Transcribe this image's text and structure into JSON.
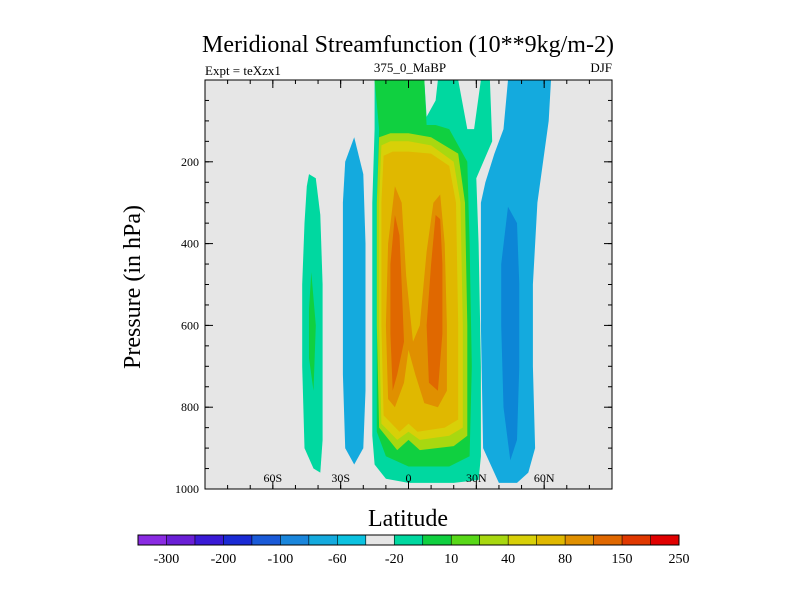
{
  "chart_data": {
    "type": "heatmap",
    "title": "Meridional Streamfunction (10**9kg/m-2)",
    "left_label": "Expt = teXzx1",
    "center_label": "375_0_MaBP",
    "right_label": "DJF",
    "xlabel": "Latitude",
    "ylabel": "Pressure (in hPa)",
    "xlim": [
      -90,
      90
    ],
    "ylim": [
      1000,
      0
    ],
    "x_ticks": [
      {
        "value": -60,
        "label": "60S"
      },
      {
        "value": -30,
        "label": "30S"
      },
      {
        "value": 0,
        "label": "0"
      },
      {
        "value": 30,
        "label": "30N"
      },
      {
        "value": 60,
        "label": "60N"
      }
    ],
    "y_ticks": [
      {
        "value": 200,
        "label": "200"
      },
      {
        "value": 400,
        "label": "400"
      },
      {
        "value": 600,
        "label": "600"
      },
      {
        "value": 800,
        "label": "800"
      },
      {
        "value": 1000,
        "label": "1000"
      }
    ],
    "background_color": "#e6e6e6",
    "colorbar": {
      "colors": [
        "#8a2be2",
        "#6a1fd6",
        "#3a1ad6",
        "#1a2ad4",
        "#1a5ad8",
        "#1a86dc",
        "#14aade",
        "#0cc2e0",
        "#e6e6e6",
        "#00d8a0",
        "#10d040",
        "#58d818",
        "#a8d810",
        "#d8d008",
        "#e0b800",
        "#e09000",
        "#e06800",
        "#e03800",
        "#e00000"
      ],
      "labels": [
        "-300",
        "-200",
        "-100",
        "-60",
        "-20",
        "10",
        "40",
        "80",
        "150",
        "250"
      ]
    },
    "cells": [
      {
        "name": "cell-60s-positive",
        "level": 10,
        "color": "#00d8a0",
        "points": [
          [
            -44,
            230
          ],
          [
            -41,
            240
          ],
          [
            -39,
            330
          ],
          [
            -38,
            500
          ],
          [
            -38,
            700
          ],
          [
            -38,
            880
          ],
          [
            -39,
            960
          ],
          [
            -42,
            950
          ],
          [
            -46,
            900
          ],
          [
            -47,
            700
          ],
          [
            -47,
            500
          ],
          [
            -46,
            350
          ],
          [
            -45,
            260
          ]
        ]
      },
      {
        "name": "cell-60s-positive-core",
        "level": 40,
        "color": "#10d040",
        "points": [
          [
            -43,
            470
          ],
          [
            -41,
            600
          ],
          [
            -42,
            760
          ],
          [
            -44,
            680
          ],
          [
            -44,
            560
          ]
        ]
      },
      {
        "name": "cell-30s-negative",
        "level": -20,
        "color": "#14aade",
        "points": [
          [
            -24,
            140
          ],
          [
            -20,
            230
          ],
          [
            -19,
            400
          ],
          [
            -19,
            600
          ],
          [
            -19,
            760
          ],
          [
            -20,
            900
          ],
          [
            -24,
            940
          ],
          [
            -28,
            900
          ],
          [
            -29,
            720
          ],
          [
            -29,
            500
          ],
          [
            -29,
            300
          ],
          [
            -28,
            200
          ]
        ]
      },
      {
        "name": "cell-hadley-10",
        "level": 10,
        "color": "#00d8a0",
        "points": [
          [
            -15,
            0
          ],
          [
            -15,
            120
          ],
          [
            -16,
            300
          ],
          [
            -16,
            600
          ],
          [
            -16,
            870
          ],
          [
            -15,
            940
          ],
          [
            -10,
            975
          ],
          [
            0,
            985
          ],
          [
            20,
            985
          ],
          [
            31,
            978
          ],
          [
            32,
            920
          ],
          [
            32,
            700
          ],
          [
            31,
            400
          ],
          [
            30,
            240
          ],
          [
            37,
            150
          ],
          [
            36,
            0
          ],
          [
            32,
            0
          ],
          [
            29,
            120
          ],
          [
            26,
            120
          ],
          [
            22,
            0
          ],
          [
            13,
            0
          ],
          [
            12,
            50
          ],
          [
            8,
            90
          ],
          [
            7,
            0
          ]
        ]
      },
      {
        "name": "cell-hadley-40",
        "level": 40,
        "color": "#10d040",
        "points": [
          [
            -15,
            0
          ],
          [
            -13,
            120
          ],
          [
            -14,
            300
          ],
          [
            -14,
            600
          ],
          [
            -14,
            860
          ],
          [
            -10,
            920
          ],
          [
            0,
            945
          ],
          [
            18,
            945
          ],
          [
            27,
            920
          ],
          [
            28,
            700
          ],
          [
            27,
            400
          ],
          [
            26,
            200
          ],
          [
            18,
            120
          ],
          [
            12,
            110
          ],
          [
            8,
            110
          ],
          [
            7,
            0
          ]
        ]
      },
      {
        "name": "cell-hadley-80",
        "level": 80,
        "color": "#a8d810",
        "points": [
          [
            -13,
            140
          ],
          [
            -14,
            300
          ],
          [
            -14,
            600
          ],
          [
            -13,
            850
          ],
          [
            -5,
            905
          ],
          [
            0,
            880
          ],
          [
            5,
            905
          ],
          [
            20,
            895
          ],
          [
            26,
            870
          ],
          [
            26,
            600
          ],
          [
            25,
            300
          ],
          [
            22,
            180
          ],
          [
            10,
            140
          ],
          [
            0,
            130
          ],
          [
            -8,
            130
          ]
        ]
      },
      {
        "name": "cell-hadley-100",
        "level": 100,
        "color": "#d8d008",
        "points": [
          [
            -12,
            160
          ],
          [
            -13,
            300
          ],
          [
            -13,
            600
          ],
          [
            -12,
            840
          ],
          [
            -5,
            880
          ],
          [
            0,
            860
          ],
          [
            5,
            880
          ],
          [
            18,
            870
          ],
          [
            24,
            850
          ],
          [
            24,
            600
          ],
          [
            23,
            300
          ],
          [
            20,
            200
          ],
          [
            10,
            160
          ],
          [
            0,
            150
          ],
          [
            -8,
            150
          ]
        ]
      },
      {
        "name": "cell-hadley-150",
        "level": 150,
        "color": "#e0b800",
        "points": [
          [
            -11,
            185
          ],
          [
            -12,
            300
          ],
          [
            -12,
            600
          ],
          [
            -11,
            820
          ],
          [
            -4,
            860
          ],
          [
            0,
            840
          ],
          [
            4,
            860
          ],
          [
            16,
            850
          ],
          [
            22,
            830
          ],
          [
            22,
            600
          ],
          [
            21,
            300
          ],
          [
            18,
            210
          ],
          [
            10,
            180
          ],
          [
            0,
            175
          ],
          [
            -7,
            175
          ]
        ]
      },
      {
        "name": "cell-hadley-200",
        "level": 200,
        "color": "#e09000",
        "points": [
          [
            -6,
            260
          ],
          [
            -9,
            400
          ],
          [
            -10,
            600
          ],
          [
            -9,
            780
          ],
          [
            -6,
            800
          ],
          [
            -2,
            740
          ],
          [
            0,
            660
          ],
          [
            3,
            720
          ],
          [
            7,
            790
          ],
          [
            13,
            800
          ],
          [
            17,
            760
          ],
          [
            17,
            600
          ],
          [
            16,
            400
          ],
          [
            14,
            280
          ],
          [
            11,
            300
          ],
          [
            8,
            420
          ],
          [
            5,
            600
          ],
          [
            2,
            640
          ],
          [
            -1,
            480
          ],
          [
            -3,
            300
          ]
        ]
      },
      {
        "name": "cell-hadley-250",
        "level": 250,
        "color": "#e06800",
        "points": [
          [
            -6,
            330
          ],
          [
            -8,
            450
          ],
          [
            -8,
            620
          ],
          [
            -7,
            760
          ],
          [
            -5,
            720
          ],
          [
            -2,
            640
          ],
          [
            -3,
            500
          ],
          [
            -4,
            380
          ]
        ]
      },
      {
        "name": "cell-hadley-250-nh",
        "level": 250,
        "color": "#e06800",
        "points": [
          [
            12,
            330
          ],
          [
            10,
            450
          ],
          [
            8,
            600
          ],
          [
            9,
            740
          ],
          [
            13,
            760
          ],
          [
            15,
            620
          ],
          [
            15,
            450
          ],
          [
            14,
            340
          ]
        ]
      },
      {
        "name": "cell-nh-negative-20",
        "level": -20,
        "color": "#14aade",
        "points": [
          [
            44,
            0
          ],
          [
            42,
            120
          ],
          [
            38,
            180
          ],
          [
            34,
            250
          ],
          [
            32,
            300
          ],
          [
            32,
            600
          ],
          [
            33,
            900
          ],
          [
            40,
            985
          ],
          [
            48,
            985
          ],
          [
            53,
            960
          ],
          [
            56,
            900
          ],
          [
            55,
            700
          ],
          [
            55,
            500
          ],
          [
            57,
            300
          ],
          [
            62,
            100
          ],
          [
            63,
            0
          ]
        ]
      },
      {
        "name": "cell-nh-negative-60",
        "level": -60,
        "color": "#0c86d6",
        "points": [
          [
            44,
            310
          ],
          [
            41,
            450
          ],
          [
            41,
            600
          ],
          [
            42,
            800
          ],
          [
            45,
            930
          ],
          [
            48,
            880
          ],
          [
            49,
            700
          ],
          [
            49,
            500
          ],
          [
            48,
            350
          ]
        ]
      }
    ]
  }
}
